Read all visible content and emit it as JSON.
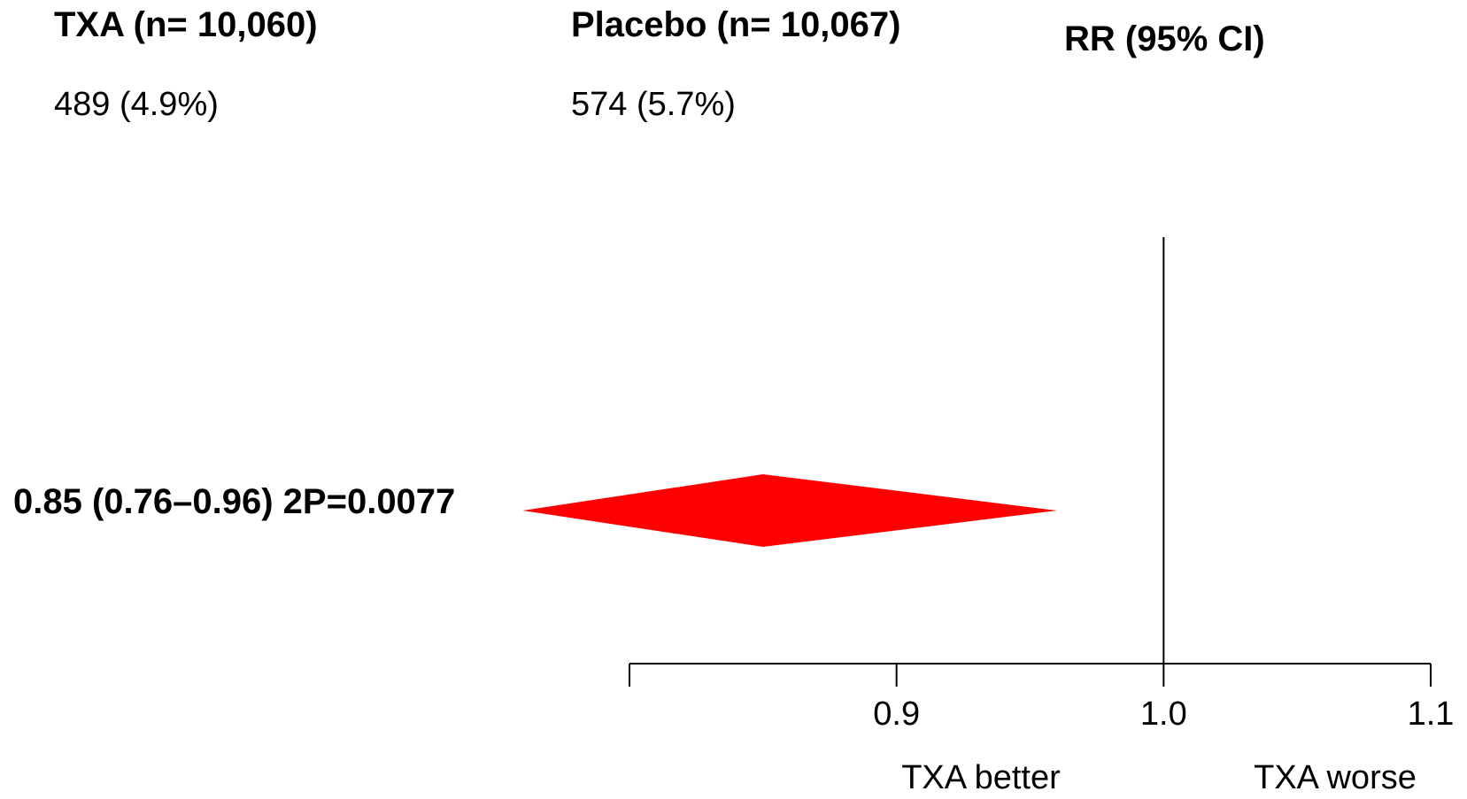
{
  "columns": {
    "txa_header": "TXA (n= 10,060)",
    "placebo_header": "Placebo (n= 10,067)",
    "rr_header": "RR (95% CI)"
  },
  "row": {
    "txa_events": "489 (4.9%)",
    "placebo_events": "574 (5.7%)",
    "result_label": "0.85 (0.76–0.96) 2P=0.0077"
  },
  "chart_data": {
    "type": "forest",
    "estimate": 0.85,
    "ci_lower": 0.76,
    "ci_upper": 0.96,
    "reference_value": 1.0,
    "xlim": [
      0.8,
      1.1
    ],
    "ticks": [
      0.9,
      1.0,
      1.1
    ],
    "tick_labels": [
      "0.9",
      "1.0",
      "1.1"
    ],
    "direction_labels": {
      "left": "TXA better",
      "right": "TXA worse"
    },
    "diamond_color": "#ff0000"
  }
}
